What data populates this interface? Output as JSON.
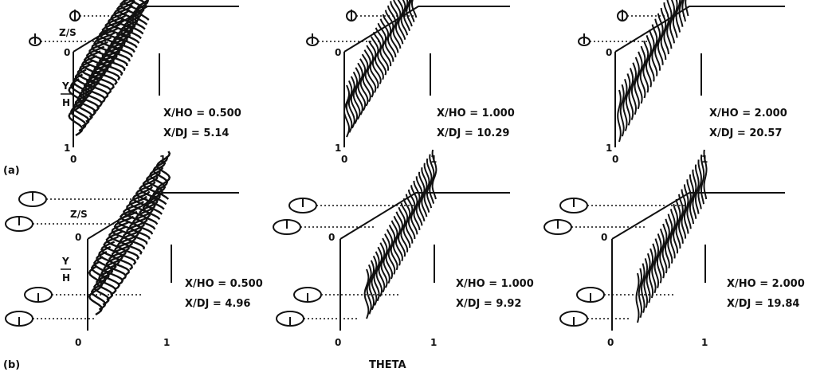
{
  "figure": {
    "row_labels": [
      "(a)",
      "(b)"
    ],
    "bottom_label": "THETA",
    "axis_labels": {
      "zs": "Z/S",
      "y": "Y",
      "h": "H",
      "zero": "0",
      "one": "1"
    },
    "rows": [
      {
        "label": "(a)",
        "panels": [
          {
            "xho": "X/HO  =  0.500",
            "xdj": "X/DJ  =  5.14"
          },
          {
            "xho": "X/HO  =  1.000",
            "xdj": "X/DJ  =  10.29"
          },
          {
            "xho": "X/HO  =  2.000",
            "xdj": "X/DJ  =  20.57"
          }
        ]
      },
      {
        "label": "(b)",
        "panels": [
          {
            "xho": "X/HO  =  0.500",
            "xdj": "X/DJ  =  4.96"
          },
          {
            "xho": "X/HO  =  1.000",
            "xdj": "X/DJ  =  9.92"
          },
          {
            "xho": "X/HO  =  2.000",
            "xdj": "X/DJ  =  19.84"
          }
        ]
      }
    ],
    "colors": {
      "ink": "#111111",
      "paper": "#ffffff"
    }
  }
}
